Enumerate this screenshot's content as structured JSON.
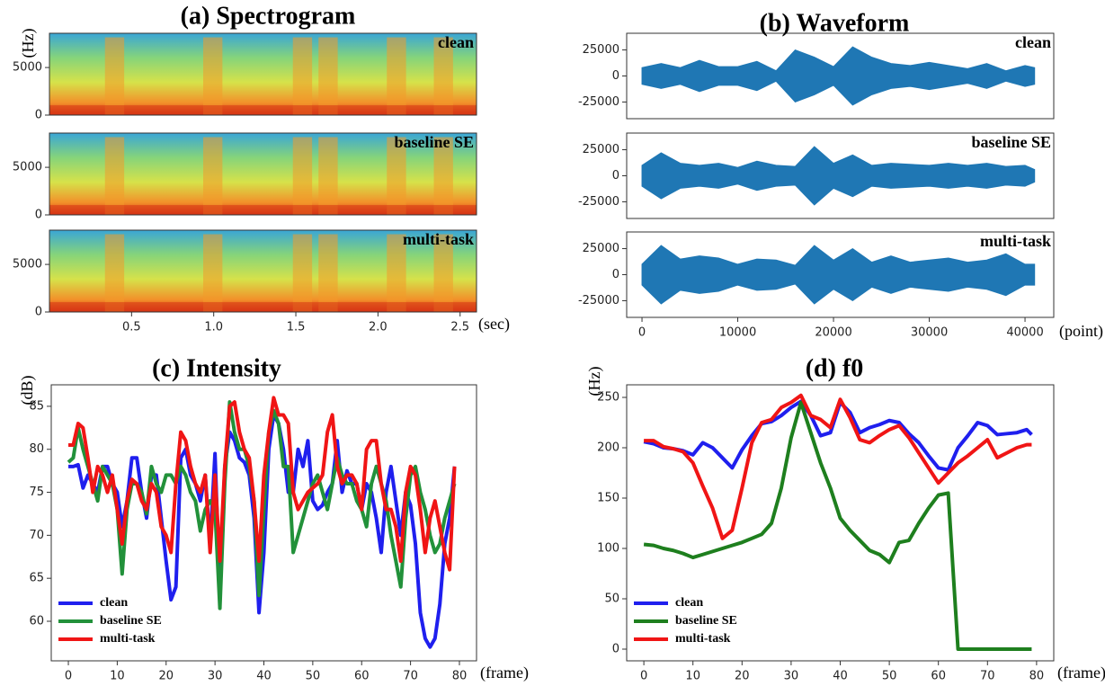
{
  "chart_data": [
    {
      "type": "spectrogram",
      "title": "(a) Spectrogram",
      "ylabel": "(Hz)",
      "xlabel": "(sec)",
      "panels": [
        "clean",
        "baseline SE",
        "multi-task"
      ],
      "xlim": [
        0,
        2.6
      ],
      "xticks": [
        0.5,
        {
          "value": 1,
          "label": "1.0"
        },
        1.5,
        {
          "value": 2,
          "label": "2.0"
        },
        2.5
      ],
      "ylim": [
        0,
        8600
      ],
      "yticks": [
        0,
        5000
      ]
    },
    {
      "type": "waveform",
      "title": "(b) Waveform",
      "xlabel": "(point)",
      "x": [
        0,
        2000,
        4000,
        6000,
        8000,
        10000,
        12000,
        14000,
        16000,
        18000,
        20000,
        22000,
        24000,
        26000,
        28000,
        30000,
        32000,
        34000,
        36000,
        38000,
        40000,
        41000
      ],
      "series": [
        {
          "name": "clean",
          "color": "#1f77b4",
          "values": [
            8000,
            12000,
            8000,
            15000,
            9000,
            9000,
            14000,
            5000,
            25000,
            18000,
            9000,
            28000,
            18000,
            12000,
            10000,
            13000,
            10000,
            7000,
            12000,
            5000,
            10000,
            8000
          ]
        },
        {
          "name": "baseline SE",
          "color": "#1f77b4",
          "values": [
            10000,
            22000,
            12000,
            10000,
            12000,
            8000,
            14000,
            10000,
            9000,
            28000,
            12000,
            20000,
            10000,
            12000,
            11000,
            10000,
            12000,
            10000,
            12000,
            9000,
            10000,
            6000
          ]
        },
        {
          "name": "multi-task",
          "color": "#1f77b4",
          "values": [
            10000,
            28000,
            15000,
            18000,
            16000,
            10000,
            15000,
            14000,
            9000,
            28000,
            14000,
            25000,
            12000,
            18000,
            12000,
            14000,
            16000,
            12000,
            14000,
            20000,
            10000,
            10000
          ]
        }
      ],
      "xlim": [
        -1600,
        43000
      ],
      "xticks": [
        0,
        10000,
        20000,
        30000,
        40000
      ],
      "ylim": [
        -41000,
        41000
      ],
      "yticks": [
        -25000,
        0,
        25000
      ]
    },
    {
      "type": "line",
      "title": "(c) Intensity",
      "ylabel": "(dB)",
      "xlabel": "(frame)",
      "legend": "lower left",
      "x": [
        0,
        1,
        2,
        3,
        4,
        5,
        6,
        7,
        8,
        9,
        10,
        11,
        12,
        13,
        14,
        15,
        16,
        17,
        18,
        19,
        20,
        21,
        22,
        23,
        24,
        25,
        26,
        27,
        28,
        29,
        30,
        31,
        32,
        33,
        34,
        35,
        36,
        37,
        38,
        39,
        40,
        41,
        42,
        43,
        44,
        45,
        46,
        47,
        48,
        49,
        50,
        51,
        52,
        53,
        54,
        55,
        56,
        57,
        58,
        59,
        60,
        61,
        62,
        63,
        64,
        65,
        66,
        67,
        68,
        69,
        70,
        71,
        72,
        73,
        74,
        75,
        76,
        77,
        78,
        79
      ],
      "series": [
        {
          "name": "clean",
          "color": "#1f1fee",
          "values": [
            78,
            78,
            78.2,
            75.5,
            77,
            76,
            75,
            78,
            78,
            76,
            75,
            71,
            74,
            79,
            79,
            75,
            72,
            77,
            77,
            72,
            67,
            62.5,
            64,
            79,
            80,
            77,
            76,
            74,
            77,
            69,
            79.5,
            63,
            78,
            82,
            81,
            79,
            78.5,
            77,
            72,
            61,
            68,
            80,
            84,
            83,
            80,
            75,
            75,
            80,
            78,
            81,
            74,
            73,
            73.5,
            75,
            76,
            81,
            75,
            77.5,
            76,
            76,
            73,
            76,
            75,
            72,
            68,
            75,
            78,
            74,
            70,
            75,
            73.5,
            69,
            61,
            58,
            57,
            58,
            62,
            69,
            72,
            78
          ]
        },
        {
          "name": "baseline SE",
          "color": "#22913a",
          "values": [
            78.5,
            79,
            82.5,
            80,
            78,
            76,
            74,
            78,
            77,
            76,
            73,
            65.5,
            73,
            76,
            76,
            75,
            72.5,
            78,
            76,
            75,
            77,
            77,
            76,
            78,
            77,
            75,
            74,
            70.5,
            73,
            74,
            73,
            61.5,
            76,
            85.5,
            82,
            80,
            80,
            78,
            74,
            63,
            73,
            82,
            84.5,
            83,
            78,
            78,
            68,
            70,
            72,
            74,
            76,
            77,
            75,
            73,
            76,
            79,
            77,
            76,
            76,
            74,
            73,
            71,
            76,
            78,
            76,
            74,
            70,
            67,
            64,
            72,
            77,
            78,
            75,
            73,
            70,
            68,
            69,
            72,
            74,
            76
          ]
        },
        {
          "name": "multi-task",
          "color": "#f01515",
          "values": [
            80.5,
            80.5,
            83,
            82.5,
            79,
            75,
            78,
            77,
            75,
            77,
            73,
            69,
            74,
            76.5,
            76,
            74,
            73,
            76,
            75,
            71,
            70,
            68,
            76,
            82,
            81,
            78,
            76,
            75,
            77,
            68,
            77,
            67,
            78,
            85,
            85.5,
            82,
            80,
            79,
            74,
            67,
            77,
            82,
            86,
            84,
            84,
            83,
            75,
            73,
            74,
            75,
            75.5,
            76,
            77,
            82,
            84,
            78,
            76,
            77,
            77,
            76,
            73,
            80,
            81,
            81,
            76,
            73,
            73,
            71,
            67,
            75,
            78,
            77,
            73,
            68,
            72,
            74,
            71,
            68,
            66,
            78
          ]
        }
      ],
      "xlim": [
        -3.5,
        83.5
      ],
      "xticks": [
        0,
        10,
        20,
        30,
        40,
        50,
        60,
        70,
        80
      ],
      "ylim": [
        55.4,
        87.5
      ],
      "yticks": [
        60,
        65,
        70,
        75,
        80,
        85
      ]
    },
    {
      "type": "line",
      "title": "(d) f0",
      "ylabel": "(Hz)",
      "xlabel": "(frame)",
      "legend": "lower left",
      "x": [
        0,
        2,
        4,
        6,
        8,
        10,
        12,
        14,
        16,
        18,
        20,
        22,
        24,
        26,
        28,
        30,
        32,
        34,
        36,
        38,
        40,
        42,
        44,
        46,
        48,
        50,
        52,
        54,
        56,
        58,
        60,
        62,
        64,
        66,
        68,
        70,
        72,
        74,
        76,
        78,
        79
      ],
      "series": [
        {
          "name": "clean",
          "color": "#1f1fee",
          "values": [
            206,
            204,
            200,
            199,
            197,
            193,
            205,
            200,
            190,
            180,
            198,
            212,
            224,
            226,
            232,
            240,
            246,
            232,
            212,
            215,
            245,
            235,
            215,
            220,
            223,
            227,
            225,
            214,
            205,
            192,
            180,
            178,
            200,
            212,
            225,
            222,
            213,
            214,
            215,
            218,
            213
          ]
        },
        {
          "name": "baseline SE",
          "color": "#1e7f1e",
          "values": [
            104,
            103,
            100,
            98,
            95,
            91,
            94,
            97,
            100,
            103,
            106,
            110,
            114,
            125,
            160,
            210,
            245,
            215,
            185,
            160,
            130,
            118,
            108,
            98,
            94,
            86,
            106,
            108,
            125,
            140,
            153,
            155,
            0,
            0,
            0,
            0,
            0,
            0,
            0,
            0,
            0
          ]
        },
        {
          "name": "multi-task",
          "color": "#f01515",
          "values": [
            207,
            207,
            201,
            199,
            196,
            185,
            162,
            140,
            110,
            118,
            160,
            205,
            225,
            228,
            240,
            245,
            252,
            232,
            228,
            220,
            248,
            230,
            208,
            205,
            212,
            218,
            222,
            210,
            195,
            180,
            165,
            175,
            185,
            192,
            200,
            208,
            190,
            195,
            200,
            203,
            203
          ]
        }
      ],
      "xlim": [
        -3.5,
        83.5
      ],
      "xticks": [
        0,
        10,
        20,
        30,
        40,
        50,
        60,
        70,
        80
      ],
      "ylim": [
        -11.6,
        262.5
      ],
      "yticks": [
        0,
        50,
        100,
        150,
        200,
        250
      ]
    }
  ]
}
